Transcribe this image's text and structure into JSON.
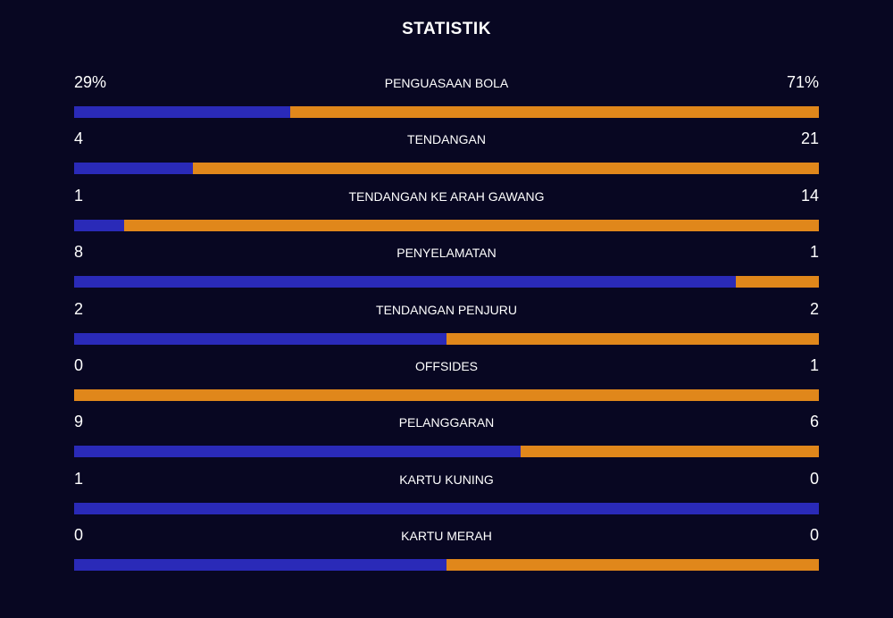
{
  "title": "STATISTIK",
  "colors": {
    "background": "#080722",
    "home": "#2a2ab8",
    "away": "#e0871b"
  },
  "stats": [
    {
      "label": "PENGUASAAN BOLA",
      "home": "29%",
      "away": "71%",
      "home_share": 0.29
    },
    {
      "label": "TENDANGAN",
      "home": "4",
      "away": "21",
      "home_share": 0.16
    },
    {
      "label": "TENDANGAN KE ARAH GAWANG",
      "home": "1",
      "away": "14",
      "home_share": 0.0667
    },
    {
      "label": "PENYELAMATAN",
      "home": "8",
      "away": "1",
      "home_share": 0.8889
    },
    {
      "label": "TENDANGAN PENJURU",
      "home": "2",
      "away": "2",
      "home_share": 0.5
    },
    {
      "label": "OFFSIDES",
      "home": "0",
      "away": "1",
      "home_share": 0
    },
    {
      "label": "PELANGGARAN",
      "home": "9",
      "away": "6",
      "home_share": 0.6
    },
    {
      "label": "KARTU KUNING",
      "home": "1",
      "away": "0",
      "home_share": 1
    },
    {
      "label": "KARTU MERAH",
      "home": "0",
      "away": "0",
      "home_share": 0.5
    }
  ]
}
